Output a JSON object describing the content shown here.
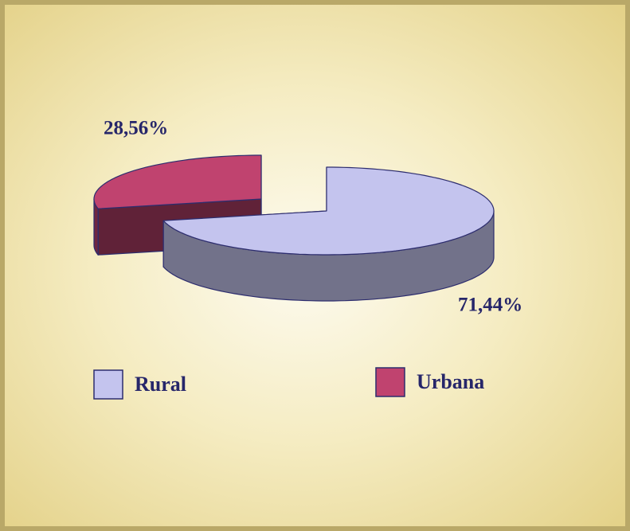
{
  "chart_data": {
    "type": "pie",
    "categories": [
      "Rural",
      "Urbana"
    ],
    "values": [
      71.44,
      28.56
    ],
    "value_labels": [
      "71,44%",
      "28,56%"
    ],
    "colors": [
      "#c4c4ee",
      "#c0436f"
    ],
    "legend": "bottom"
  }
}
